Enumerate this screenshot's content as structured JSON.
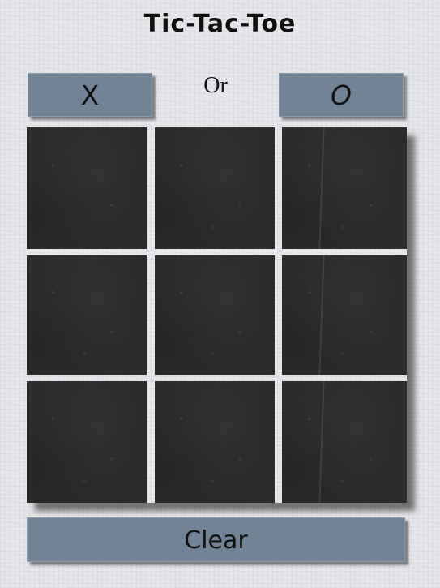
{
  "title": "Tic-Tac-Toe",
  "choices": {
    "x_label": "X",
    "or_label": "Or",
    "o_label": "O"
  },
  "board": {
    "cells": [
      "",
      "",
      "",
      "",
      "",
      "",
      "",
      "",
      ""
    ]
  },
  "clear_label": "Clear",
  "colors": {
    "button": "#718394",
    "board_cell": "#2b2927",
    "background": "#e6e7ea"
  }
}
